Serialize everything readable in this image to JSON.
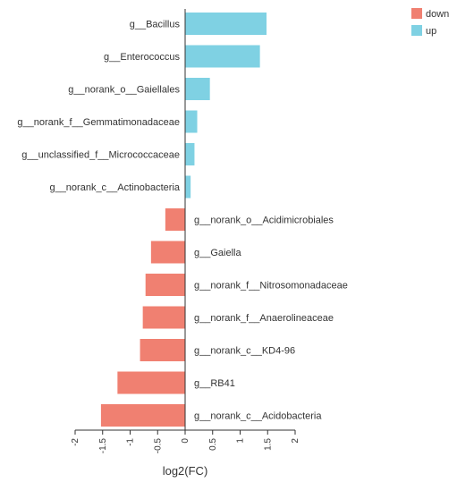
{
  "chart_data": {
    "type": "bar",
    "orientation": "horizontal",
    "xlabel": "log2(FC)",
    "xlim": [
      -2,
      2
    ],
    "xticks": [
      "-2",
      "-1.5",
      "-1",
      "-0.5",
      "0",
      "0.5",
      "1",
      "1.5",
      "2"
    ],
    "legend": {
      "placement": "top-right",
      "entries": [
        {
          "name": "down",
          "color": "#f08071"
        },
        {
          "name": "up",
          "color": "#7fd1e3"
        }
      ]
    },
    "categories": [
      "g__Bacillus",
      "g__Enterococcus",
      "g__norank_o__Gaiellales",
      "g__norank_f__Gemmatimonadaceae",
      "g__unclassified_f__Micrococcaceae",
      "g__norank_c__Actinobacteria",
      "g__norank_o__Acidimicrobiales",
      "g__Gaiella",
      "g__norank_f__Nitrosomonadaceae",
      "g__norank_f__Anaerolineaceae",
      "g__norank_c__KD4-96",
      "g__RB41",
      "g__norank_c__Acidobacteria"
    ],
    "values": [
      1.48,
      1.36,
      0.45,
      0.22,
      0.17,
      0.1,
      -0.36,
      -0.62,
      -0.72,
      -0.77,
      -0.82,
      -1.23,
      -1.53
    ],
    "groups": [
      "up",
      "up",
      "up",
      "up",
      "up",
      "up",
      "down",
      "down",
      "down",
      "down",
      "down",
      "down",
      "down"
    ]
  }
}
